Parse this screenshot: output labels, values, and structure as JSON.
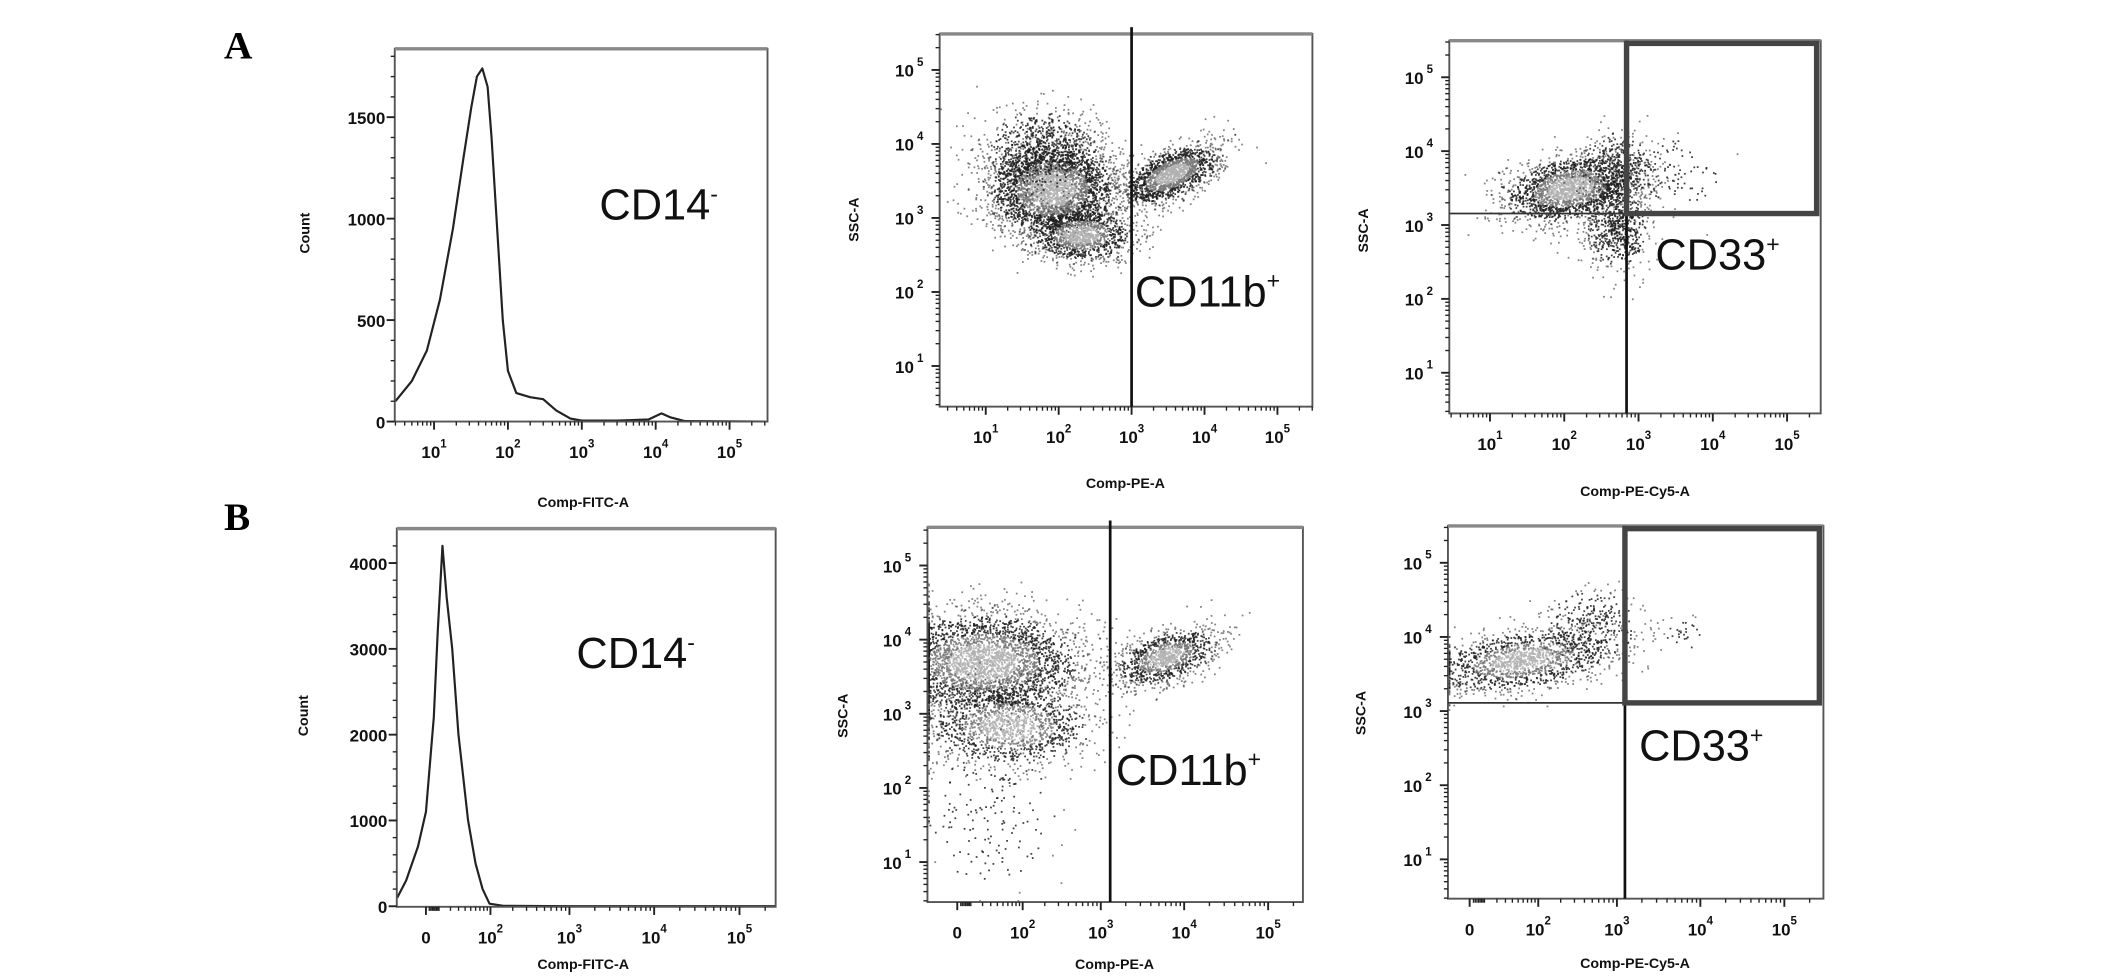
{
  "figure": {
    "panel_labels": [
      "A",
      "B"
    ]
  },
  "chart_data": [
    {
      "row": "A",
      "type": "line",
      "plot": "histogram",
      "xlabel": "Comp-FITC-A",
      "ylabel": "Count",
      "x_scale": "log",
      "xlim": [
        3,
        300000
      ],
      "ylim": [
        0,
        1840
      ],
      "x_ticks": [
        {
          "value": 10,
          "label": "10",
          "exp": "1"
        },
        {
          "value": 100,
          "label": "10",
          "exp": "2"
        },
        {
          "value": 1000,
          "label": "10",
          "exp": "3"
        },
        {
          "value": 10000,
          "label": "10",
          "exp": "4"
        },
        {
          "value": 100000,
          "label": "10",
          "exp": "5"
        }
      ],
      "y_ticks": [
        {
          "value": 0,
          "label": "0",
          "exp": ""
        },
        {
          "value": 500,
          "label": "500",
          "exp": ""
        },
        {
          "value": 1000,
          "label": "1000",
          "exp": ""
        },
        {
          "value": 1500,
          "label": "1500",
          "exp": ""
        }
      ],
      "annotation": {
        "text": "CD14",
        "sign": "-"
      },
      "series": [
        {
          "x": [
            3,
            5,
            8,
            12,
            18,
            25,
            32,
            38,
            45,
            53,
            60,
            70,
            85,
            100,
            130,
            200,
            300,
            450,
            700,
            1000,
            3000,
            8000,
            12000,
            16000,
            25000,
            300000
          ],
          "y": [
            100,
            200,
            350,
            600,
            950,
            1300,
            1550,
            1700,
            1740,
            1650,
            1400,
            1000,
            500,
            250,
            140,
            120,
            110,
            55,
            15,
            5,
            5,
            10,
            40,
            20,
            2,
            0
          ]
        }
      ]
    },
    {
      "row": "A",
      "type": "scatter",
      "plot": "density dot plot",
      "xlabel": "Comp-PE-A",
      "ylabel": "SSC-A",
      "x_scale": "log",
      "y_scale": "log",
      "xlim": [
        2.3,
        300000
      ],
      "ylim": [
        2.8,
        310000
      ],
      "x_ticks": [
        {
          "value": 10,
          "label": "10",
          "exp": "1"
        },
        {
          "value": 100,
          "label": "10",
          "exp": "2"
        },
        {
          "value": 1000,
          "label": "10",
          "exp": "3"
        },
        {
          "value": 10000,
          "label": "10",
          "exp": "4"
        },
        {
          "value": 100000,
          "label": "10",
          "exp": "5"
        }
      ],
      "y_ticks": [
        {
          "value": 10,
          "label": "10",
          "exp": "1"
        },
        {
          "value": 100,
          "label": "10",
          "exp": "2"
        },
        {
          "value": 1000,
          "label": "10",
          "exp": "3"
        },
        {
          "value": 10000,
          "label": "10",
          "exp": "4"
        },
        {
          "value": 100000,
          "label": "10",
          "exp": "5"
        }
      ],
      "annotation": {
        "text": "CD11b",
        "sign": "+"
      },
      "gates": {
        "vertical_x": 1000
      },
      "populations": [
        {
          "center_x": 80,
          "center_y": 2500,
          "spread_x": 0.45,
          "spread_y": 0.33,
          "slope": 0,
          "events": 3200
        },
        {
          "center_x": 200,
          "center_y": 600,
          "spread_x": 0.35,
          "spread_y": 0.18,
          "slope": 0,
          "events": 1200
        },
        {
          "center_x": 3500,
          "center_y": 4000,
          "spread_x": 0.33,
          "spread_y": 0.17,
          "slope": 0.35,
          "events": 1600
        },
        {
          "center_x": 60,
          "center_y": 9000,
          "spread_x": 0.4,
          "spread_y": 0.28,
          "slope": 0,
          "events": 700
        }
      ]
    },
    {
      "row": "A",
      "type": "scatter",
      "plot": "density dot plot",
      "xlabel": "Comp-PE-Cy5-A",
      "ylabel": "SSC-A",
      "x_scale": "log",
      "y_scale": "log",
      "xlim": [
        2.8,
        280000
      ],
      "ylim": [
        2.8,
        320000
      ],
      "x_ticks": [
        {
          "value": 10,
          "label": "10",
          "exp": "1"
        },
        {
          "value": 100,
          "label": "10",
          "exp": "2"
        },
        {
          "value": 1000,
          "label": "10",
          "exp": "3"
        },
        {
          "value": 10000,
          "label": "10",
          "exp": "4"
        },
        {
          "value": 100000,
          "label": "10",
          "exp": "5"
        }
      ],
      "y_ticks": [
        {
          "value": 10,
          "label": "10",
          "exp": "1"
        },
        {
          "value": 100,
          "label": "10",
          "exp": "2"
        },
        {
          "value": 1000,
          "label": "10",
          "exp": "3"
        },
        {
          "value": 10000,
          "label": "10",
          "exp": "4"
        },
        {
          "value": 100000,
          "label": "10",
          "exp": "5"
        }
      ],
      "annotation": {
        "text": "CD33",
        "sign": "+"
      },
      "gates": {
        "vertical_x": 690,
        "horizontal_y": 1430,
        "positive_gate": {
          "x_min": 690,
          "y_min": 1430
        }
      },
      "populations": [
        {
          "center_x": 120,
          "center_y": 3200,
          "spread_x": 0.45,
          "spread_y": 0.22,
          "slope": 0.15,
          "events": 2000
        },
        {
          "center_x": 500,
          "center_y": 900,
          "spread_x": 0.22,
          "spread_y": 0.28,
          "slope": 0,
          "events": 600
        },
        {
          "center_x": 500,
          "center_y": 6000,
          "spread_x": 0.25,
          "spread_y": 0.25,
          "slope": 0,
          "events": 400
        },
        {
          "center_x": 3000,
          "center_y": 5000,
          "spread_x": 0.35,
          "spread_y": 0.25,
          "slope": 0,
          "events": 90
        }
      ]
    },
    {
      "row": "B",
      "type": "line",
      "plot": "histogram",
      "xlabel": "Comp-FITC-A",
      "ylabel": "Count",
      "x_scale": "biexponential",
      "xlim": [
        -25,
        300000
      ],
      "ylim": [
        0,
        4400
      ],
      "x_ticks": [
        {
          "value": 0,
          "label": "0",
          "exp": ""
        },
        {
          "value": 100,
          "label": "10",
          "exp": "2"
        },
        {
          "value": 1000,
          "label": "10",
          "exp": "3"
        },
        {
          "value": 10000,
          "label": "10",
          "exp": "4"
        },
        {
          "value": 100000,
          "label": "10",
          "exp": "5"
        }
      ],
      "y_ticks": [
        {
          "value": 0,
          "label": "0",
          "exp": ""
        },
        {
          "value": 1000,
          "label": "1000",
          "exp": ""
        },
        {
          "value": 2000,
          "label": "2000",
          "exp": ""
        },
        {
          "value": 3000,
          "label": "3000",
          "exp": ""
        },
        {
          "value": 4000,
          "label": "4000",
          "exp": ""
        }
      ],
      "annotation": {
        "text": "CD14",
        "sign": "-"
      },
      "series": [
        {
          "x": [
            -25,
            -15,
            -5,
            0,
            5,
            8,
            12,
            16,
            22,
            30,
            45,
            60,
            77,
            97,
            150,
            1000,
            300000
          ],
          "y": [
            100,
            300,
            700,
            1100,
            2200,
            3200,
            4200,
            3600,
            3000,
            2000,
            1000,
            500,
            200,
            30,
            5,
            0,
            0
          ]
        }
      ]
    },
    {
      "row": "B",
      "type": "scatter",
      "plot": "density dot plot",
      "xlabel": "Comp-PE-A",
      "ylabel": "SSC-A",
      "x_scale": "biexponential",
      "y_scale": "log",
      "xlim": [
        -45,
        250000
      ],
      "ylim": [
        3,
        330000
      ],
      "x_ticks": [
        {
          "value": 0,
          "label": "0",
          "exp": ""
        },
        {
          "value": 100,
          "label": "10",
          "exp": "2"
        },
        {
          "value": 1000,
          "label": "10",
          "exp": "3"
        },
        {
          "value": 10000,
          "label": "10",
          "exp": "4"
        },
        {
          "value": 100000,
          "label": "10",
          "exp": "5"
        }
      ],
      "y_ticks": [
        {
          "value": 10,
          "label": "10",
          "exp": "1"
        },
        {
          "value": 100,
          "label": "10",
          "exp": "2"
        },
        {
          "value": 1000,
          "label": "10",
          "exp": "3"
        },
        {
          "value": 10000,
          "label": "10",
          "exp": "4"
        },
        {
          "value": 100000,
          "label": "10",
          "exp": "5"
        }
      ],
      "annotation": {
        "text": "CD11b",
        "sign": "+"
      },
      "gates": {
        "vertical_x": 1300
      },
      "populations": [
        {
          "center_x": 20,
          "center_y": 5000,
          "spread_x": 0.6,
          "spread_y": 0.35,
          "slope": 0,
          "events": 3200
        },
        {
          "center_x": 60,
          "center_y": 700,
          "spread_x": 0.5,
          "spread_y": 0.28,
          "slope": 0,
          "events": 1400
        },
        {
          "center_x": 6000,
          "center_y": 6000,
          "spread_x": 0.3,
          "spread_y": 0.17,
          "slope": 0.3,
          "events": 1100
        },
        {
          "center_x": 30,
          "center_y": 40,
          "spread_x": 0.45,
          "spread_y": 0.5,
          "slope": 0,
          "events": 160
        }
      ]
    },
    {
      "row": "B",
      "type": "scatter",
      "plot": "density dot plot",
      "xlabel": "Comp-PE-Cy5-A",
      "ylabel": "SSC-A",
      "x_scale": "biexponential",
      "y_scale": "log",
      "xlim": [
        -30,
        250000
      ],
      "ylim": [
        3,
        330000
      ],
      "x_ticks": [
        {
          "value": 0,
          "label": "0",
          "exp": ""
        },
        {
          "value": 100,
          "label": "10",
          "exp": "2"
        },
        {
          "value": 1000,
          "label": "10",
          "exp": "3"
        },
        {
          "value": 10000,
          "label": "10",
          "exp": "4"
        },
        {
          "value": 100000,
          "label": "10",
          "exp": "5"
        }
      ],
      "y_ticks": [
        {
          "value": 10,
          "label": "10",
          "exp": "1"
        },
        {
          "value": 100,
          "label": "10",
          "exp": "2"
        },
        {
          "value": 1000,
          "label": "10",
          "exp": "3"
        },
        {
          "value": 10000,
          "label": "10",
          "exp": "4"
        },
        {
          "value": 100000,
          "label": "10",
          "exp": "5"
        }
      ],
      "annotation": {
        "text": "CD33",
        "sign": "+"
      },
      "gates": {
        "vertical_x": 1250,
        "horizontal_y": 1290,
        "positive_gate": {
          "x_min": 1250,
          "y_min": 1290
        }
      },
      "populations": [
        {
          "center_x": 60,
          "center_y": 5000,
          "spread_x": 0.55,
          "spread_y": 0.2,
          "slope": 0.15,
          "events": 1500
        },
        {
          "center_x": 500,
          "center_y": 15000,
          "spread_x": 0.3,
          "spread_y": 0.25,
          "slope": 0,
          "events": 300
        },
        {
          "center_x": 6000,
          "center_y": 11000,
          "spread_x": 0.12,
          "spread_y": 0.13,
          "slope": 0,
          "events": 25
        }
      ]
    }
  ]
}
